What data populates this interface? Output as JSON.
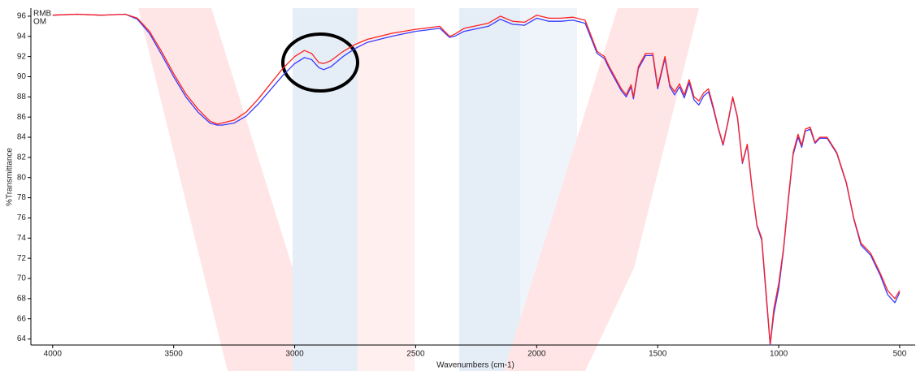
{
  "chart_data": {
    "type": "line",
    "xlabel": "Wavenumbers (cm-1)",
    "ylabel": "%Transmittance",
    "x": [
      4000,
      3900,
      3800,
      3700,
      3650,
      3600,
      3550,
      3500,
      3450,
      3400,
      3350,
      3320,
      3300,
      3250,
      3200,
      3150,
      3100,
      3050,
      3000,
      2960,
      2930,
      2900,
      2880,
      2850,
      2800,
      2750,
      2700,
      2600,
      2500,
      2400,
      2360,
      2340,
      2300,
      2200,
      2150,
      2100,
      2050,
      2000,
      1950,
      1900,
      1850,
      1800,
      1750,
      1720,
      1700,
      1650,
      1630,
      1610,
      1600,
      1580,
      1550,
      1520,
      1500,
      1470,
      1450,
      1430,
      1410,
      1390,
      1370,
      1350,
      1330,
      1310,
      1290,
      1270,
      1250,
      1230,
      1210,
      1190,
      1170,
      1150,
      1130,
      1110,
      1090,
      1070,
      1050,
      1035,
      1020,
      1000,
      980,
      960,
      940,
      920,
      905,
      890,
      870,
      850,
      830,
      800,
      760,
      720,
      690,
      660,
      620,
      580,
      550,
      520,
      500
    ],
    "series": [
      {
        "name": "RMB",
        "color": "#3a3aff",
        "values": [
          96.1,
          96.2,
          96.1,
          96.2,
          95.7,
          94.3,
          92.2,
          90.0,
          88.0,
          86.5,
          85.4,
          85.2,
          85.2,
          85.4,
          86.1,
          87.3,
          88.7,
          90.1,
          91.3,
          91.9,
          91.7,
          90.9,
          90.7,
          91.0,
          92.0,
          92.8,
          93.4,
          94.0,
          94.5,
          94.8,
          93.9,
          94.0,
          94.5,
          95.0,
          95.7,
          95.2,
          95.1,
          95.8,
          95.5,
          95.5,
          95.6,
          95.3,
          92.3,
          91.8,
          90.8,
          88.6,
          88.0,
          89.0,
          87.8,
          90.8,
          92.1,
          92.1,
          88.8,
          91.8,
          89.0,
          88.2,
          89.0,
          87.9,
          89.4,
          87.7,
          87.2,
          88.1,
          88.5,
          86.8,
          84.9,
          83.2,
          85.4,
          87.9,
          85.9,
          81.4,
          83.2,
          78.9,
          75.2,
          73.8,
          67.7,
          63.4,
          66.5,
          69.0,
          72.8,
          77.8,
          82.3,
          84.0,
          83.0,
          84.6,
          84.8,
          83.4,
          83.9,
          83.9,
          82.4,
          79.4,
          75.9,
          73.3,
          72.3,
          70.3,
          68.4,
          67.6,
          68.6
        ]
      },
      {
        "name": "OM",
        "color": "#ff2020",
        "values": [
          96.1,
          96.2,
          96.1,
          96.2,
          95.8,
          94.5,
          92.5,
          90.3,
          88.3,
          86.8,
          85.6,
          85.3,
          85.4,
          85.7,
          86.5,
          87.8,
          89.3,
          90.8,
          92.0,
          92.6,
          92.3,
          91.4,
          91.3,
          91.6,
          92.5,
          93.2,
          93.7,
          94.3,
          94.7,
          95.0,
          94.0,
          94.2,
          94.8,
          95.3,
          96.0,
          95.5,
          95.4,
          96.1,
          95.8,
          95.8,
          95.9,
          95.6,
          92.5,
          92.0,
          91.0,
          88.8,
          88.2,
          89.2,
          88.0,
          91.0,
          92.3,
          92.3,
          89.0,
          92.0,
          89.2,
          88.5,
          89.3,
          88.2,
          89.7,
          88.0,
          87.6,
          88.4,
          88.8,
          87.0,
          85.0,
          83.3,
          85.5,
          88.0,
          86.0,
          81.5,
          83.3,
          79.0,
          75.3,
          74.0,
          68.0,
          63.5,
          67.0,
          69.5,
          73.0,
          78.0,
          82.5,
          84.3,
          83.2,
          84.8,
          85.0,
          83.5,
          84.0,
          84.0,
          82.5,
          79.5,
          76.0,
          73.5,
          72.5,
          70.5,
          68.8,
          68.0,
          68.8
        ]
      }
    ],
    "xlim": [
      4090,
      436
    ],
    "xticks": [
      4000,
      3500,
      3000,
      2500,
      2000,
      1500,
      1000,
      500
    ],
    "ylim": [
      63.4,
      96.8
    ],
    "yticks": [
      64,
      66,
      68,
      70,
      72,
      74,
      76,
      78,
      80,
      82,
      84,
      86,
      88,
      90,
      92,
      94,
      96
    ],
    "grid": false
  }
}
